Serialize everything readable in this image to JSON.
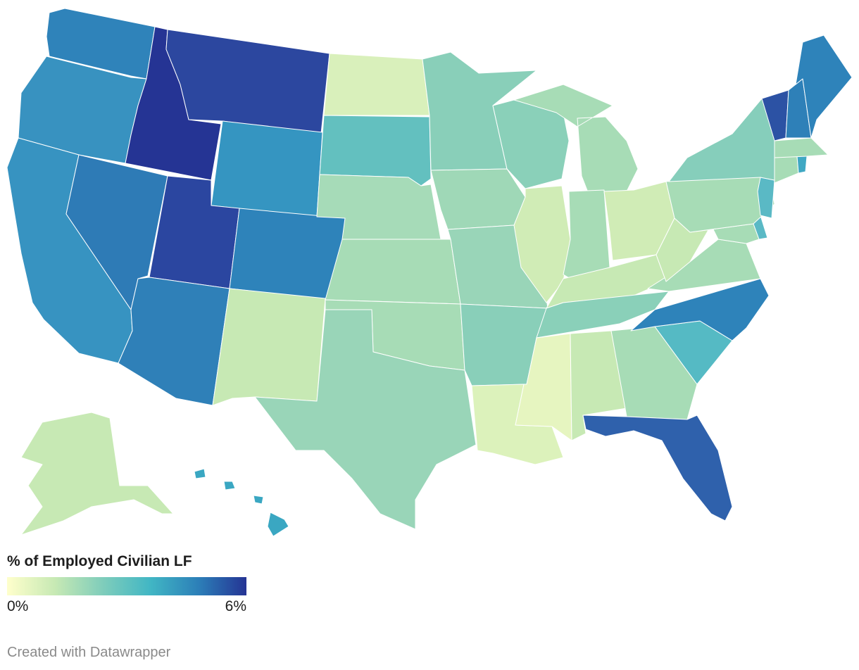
{
  "legend": {
    "title": "% of Employed Civilian LF",
    "min_label": "0%",
    "max_label": "6%",
    "min_value": 0,
    "max_value": 6,
    "colors": [
      "#ffffcc",
      "#c7e9b4",
      "#7fcdbb",
      "#41b6c4",
      "#2c7fb8",
      "#253494"
    ]
  },
  "credit": "Created with Datawrapper",
  "states": [
    {
      "code": "WA",
      "fill": "#2f83ba"
    },
    {
      "code": "OR",
      "fill": "#3892c0"
    },
    {
      "code": "CA",
      "fill": "#3793c1"
    },
    {
      "code": "NV",
      "fill": "#2e7bb6"
    },
    {
      "code": "ID",
      "fill": "#253494"
    },
    {
      "code": "MT",
      "fill": "#2c479f"
    },
    {
      "code": "WY",
      "fill": "#3595c1"
    },
    {
      "code": "UT",
      "fill": "#2b46a0"
    },
    {
      "code": "AZ",
      "fill": "#2f80b8"
    },
    {
      "code": "CO",
      "fill": "#2e83ba"
    },
    {
      "code": "NM",
      "fill": "#c7e9b4"
    },
    {
      "code": "ND",
      "fill": "#d9f0bb"
    },
    {
      "code": "SD",
      "fill": "#63c0bf"
    },
    {
      "code": "NE",
      "fill": "#a6dbb8"
    },
    {
      "code": "KS",
      "fill": "#a7dcb6"
    },
    {
      "code": "OK",
      "fill": "#a7dcb6"
    },
    {
      "code": "TX",
      "fill": "#99d5b8"
    },
    {
      "code": "MN",
      "fill": "#89cfb9"
    },
    {
      "code": "IA",
      "fill": "#9fd8b7"
    },
    {
      "code": "MO",
      "fill": "#99d5b8"
    },
    {
      "code": "AR",
      "fill": "#89cfb9"
    },
    {
      "code": "LA",
      "fill": "#dcf2bb"
    },
    {
      "code": "WI",
      "fill": "#8ad0b9"
    },
    {
      "code": "IL",
      "fill": "#d0ecb6"
    },
    {
      "code": "MI",
      "fill": "#a7dcb6"
    },
    {
      "code": "IN",
      "fill": "#a7dcb6"
    },
    {
      "code": "OH",
      "fill": "#d0ecb6"
    },
    {
      "code": "KY",
      "fill": "#c7e9b4"
    },
    {
      "code": "TN",
      "fill": "#8ad0b9"
    },
    {
      "code": "MS",
      "fill": "#e6f5c0"
    },
    {
      "code": "AL",
      "fill": "#c7e9b4"
    },
    {
      "code": "GA",
      "fill": "#a7dcb6"
    },
    {
      "code": "FL",
      "fill": "#2f61ac"
    },
    {
      "code": "SC",
      "fill": "#55bac4"
    },
    {
      "code": "NC",
      "fill": "#2e83ba"
    },
    {
      "code": "VA",
      "fill": "#a7dcb6"
    },
    {
      "code": "WV",
      "fill": "#c7e9b4"
    },
    {
      "code": "PA",
      "fill": "#a7dcb6"
    },
    {
      "code": "NY",
      "fill": "#86cebb"
    },
    {
      "code": "VT",
      "fill": "#2c52a4"
    },
    {
      "code": "NH",
      "fill": "#2e80b8"
    },
    {
      "code": "ME",
      "fill": "#2e83ba"
    },
    {
      "code": "MA",
      "fill": "#a7dcb6"
    },
    {
      "code": "CT",
      "fill": "#a7dcb6"
    },
    {
      "code": "RI",
      "fill": "#3fa8c3"
    },
    {
      "code": "NJ",
      "fill": "#5ab9c5"
    },
    {
      "code": "DE",
      "fill": "#5ab9c5"
    },
    {
      "code": "MD",
      "fill": "#a7dcb6"
    },
    {
      "code": "AK",
      "fill": "#c7e9b4"
    },
    {
      "code": "HI",
      "fill": "#3aa7c2"
    }
  ]
}
